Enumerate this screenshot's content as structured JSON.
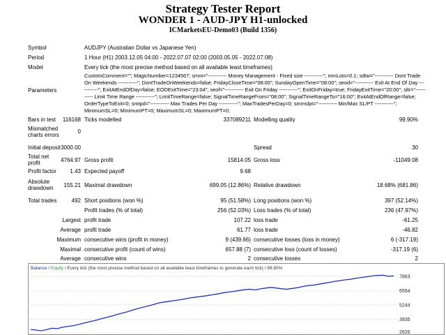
{
  "header": {
    "title": "Strategy Tester Report",
    "subtitle": "WONDER 1 - AUD-JPY H1-unlocked",
    "server": "ICMarketsEU-Demo03 (Build 1356)"
  },
  "info": {
    "symbol_label": "Symbol",
    "symbol_value": "AUDJPY (Australian Dollar vs Japanese Yen)",
    "period_label": "Period",
    "period_value": "1 Hour (H1) 2003.12.05 04:00 - 2022.07.07 02:00 (2003.05.05 - 2022.07.08)",
    "model_label": "Model",
    "model_value": "Every tick (the most precise method based on all available least timeframes)",
    "parameters_label": "Parameters",
    "parameters_value": "CustomComment=\"\"; MagicNumber=1234567; smm=\"----------- Money Management - Fixed size -----------\"; mmLots=0.1; sdtw=\"----------- Dont Trade On Weekends -----------\"; DontTradeOnWeekends=false; FridayCloseTime=\"08:00\"; SundayOpenTime=\"08:00\"; seod=\"----------- Exit At End Of Day -----------\"; ExitAtEndOfDay=false; EODExitTime=\"23:04\"; seof=\"----------- Exit On Friday -----------\"; ExitOnFriday=true; FridayExitTime=\"20:00\"; sltr=\"----------- Limit Time Range -----------\"; LimitTimeRange=false; SignalTimeRangeFrom=\"08:00\"; SignalTimeRangeTo=\"16:00\"; ExitAtEndOfRange=false; OrderTypeToExit=0; smtpd=\"----------- Max Trades Per Day -----------\"; MaxTradesPerDay=0; smmslpt=\"----------- Min/Max SL/PT -----------\"; MinimumSL=0; MinimumPT=0; MaximumSL=0; MaximumPT=0;"
  },
  "stats": {
    "bars_label": "Bars in test",
    "bars_value": "116168",
    "ticks_label": "Ticks modelled",
    "ticks_value": "337089211",
    "quality_label": "Modelling quality",
    "quality_value": "99.90%",
    "mismatch_label1": "Mismatched",
    "mismatch_label2": "charts errors",
    "mismatch_value": "0",
    "deposit_label": "Initial deposit",
    "deposit_value": "3000.00",
    "spread_label": "Spread",
    "spread_value": "30",
    "netprofit_label1": "Total net",
    "netprofit_label2": "profit",
    "netprofit_value": "4764.97",
    "grossprofit_label": "Gross profit",
    "grossprofit_value": "15814.05",
    "grossloss_label": "Gross loss",
    "grossloss_value": "-11049.08",
    "pf_label": "Profit factor",
    "pf_value": "1.43",
    "payoff_label": "Expected payoff",
    "payoff_value": "9.68",
    "absdd_label1": "Absolute",
    "absdd_label2": "drawdown",
    "absdd_value": "155.21",
    "maxdd_label": "Maximal drawdown",
    "maxdd_value": "699.05 (12.86%)",
    "reldd_label": "Relative drawdown",
    "reldd_value": "18.68% (681.86)",
    "trades_label": "Total trades",
    "trades_value": "492",
    "short_label": "Short positions (won %)",
    "short_value": "95 (51.58%)",
    "long_label": "Long positions (won %)",
    "long_value": "397 (52.14%)",
    "pt_label": "Profit trades (% of total)",
    "pt_value": "256 (52.03%)",
    "lt_label": "Loss trades (% of total)",
    "lt_value": "236 (47.97%)",
    "largest_label": "Largest",
    "largest_pt_label": "profit trade",
    "largest_pt_value": "107.22",
    "largest_lt_label": "loss trade",
    "largest_lt_value": "-61.25",
    "average_label": "Average",
    "average_pt_label": "profit trade",
    "average_pt_value": "61.77",
    "average_lt_label": "loss trade",
    "average_lt_value": "-46.82",
    "maximum_label": "Maximum",
    "max_cw_label": "consecutive wins (profit in money)",
    "max_cw_value": "9 (439.66)",
    "max_cl_label": "consecutive losses (loss in money)",
    "max_cl_value": "6 (-317.19)",
    "maximal_label": "Maximal",
    "maximal_cp_label": "consecutive profit (count of wins)",
    "maximal_cp_value": "657.88 (7)",
    "maximal_cl_label": "consecutive loss (count of losses)",
    "maximal_cl_value": "-317.19 (6)",
    "avg_label": "Average",
    "avg_cw_label": "consecutive wins",
    "avg_cw_value": "2",
    "avg_cl_label": "consecutive losses",
    "avg_cl_value": "2"
  },
  "chart_data": {
    "type": "line",
    "legend_balance": "Balance",
    "legend_sep": " / ",
    "legend_equity": "Equity",
    "legend_rest": " / Every tick (the most precise method based on all available least timeframes to generate each tick) / 99.90%",
    "yticks": [
      7863,
      6554,
      5244,
      3935,
      2626
    ],
    "ylim": [
      2626,
      8300
    ],
    "colors": {
      "balance": "#1f2fb8",
      "equity": "#2a9d2a",
      "border": "#8a8a8a"
    },
    "series": [
      {
        "name": "Balance",
        "values": [
          3000,
          2950,
          2880,
          2990,
          3120,
          3080,
          3220,
          3290,
          3350,
          3460,
          3590,
          3710,
          3810,
          3960,
          4080,
          4210,
          4350,
          4480,
          4600,
          4760,
          4910,
          5030,
          5150,
          5280,
          5430,
          5510,
          5580,
          5650,
          5720,
          5810,
          5900,
          5960,
          6030,
          6090,
          6170,
          6250,
          6340,
          6420,
          6480,
          6560,
          6630,
          6680,
          6620,
          6710,
          6780,
          6850,
          6790,
          6720,
          6680,
          6750,
          6830,
          6930,
          7010,
          7060,
          7140,
          7230,
          7310,
          7400,
          7470,
          7540,
          7600,
          7690,
          7760,
          7820,
          7890,
          7940,
          7960,
          7860,
          7900
        ]
      }
    ]
  }
}
